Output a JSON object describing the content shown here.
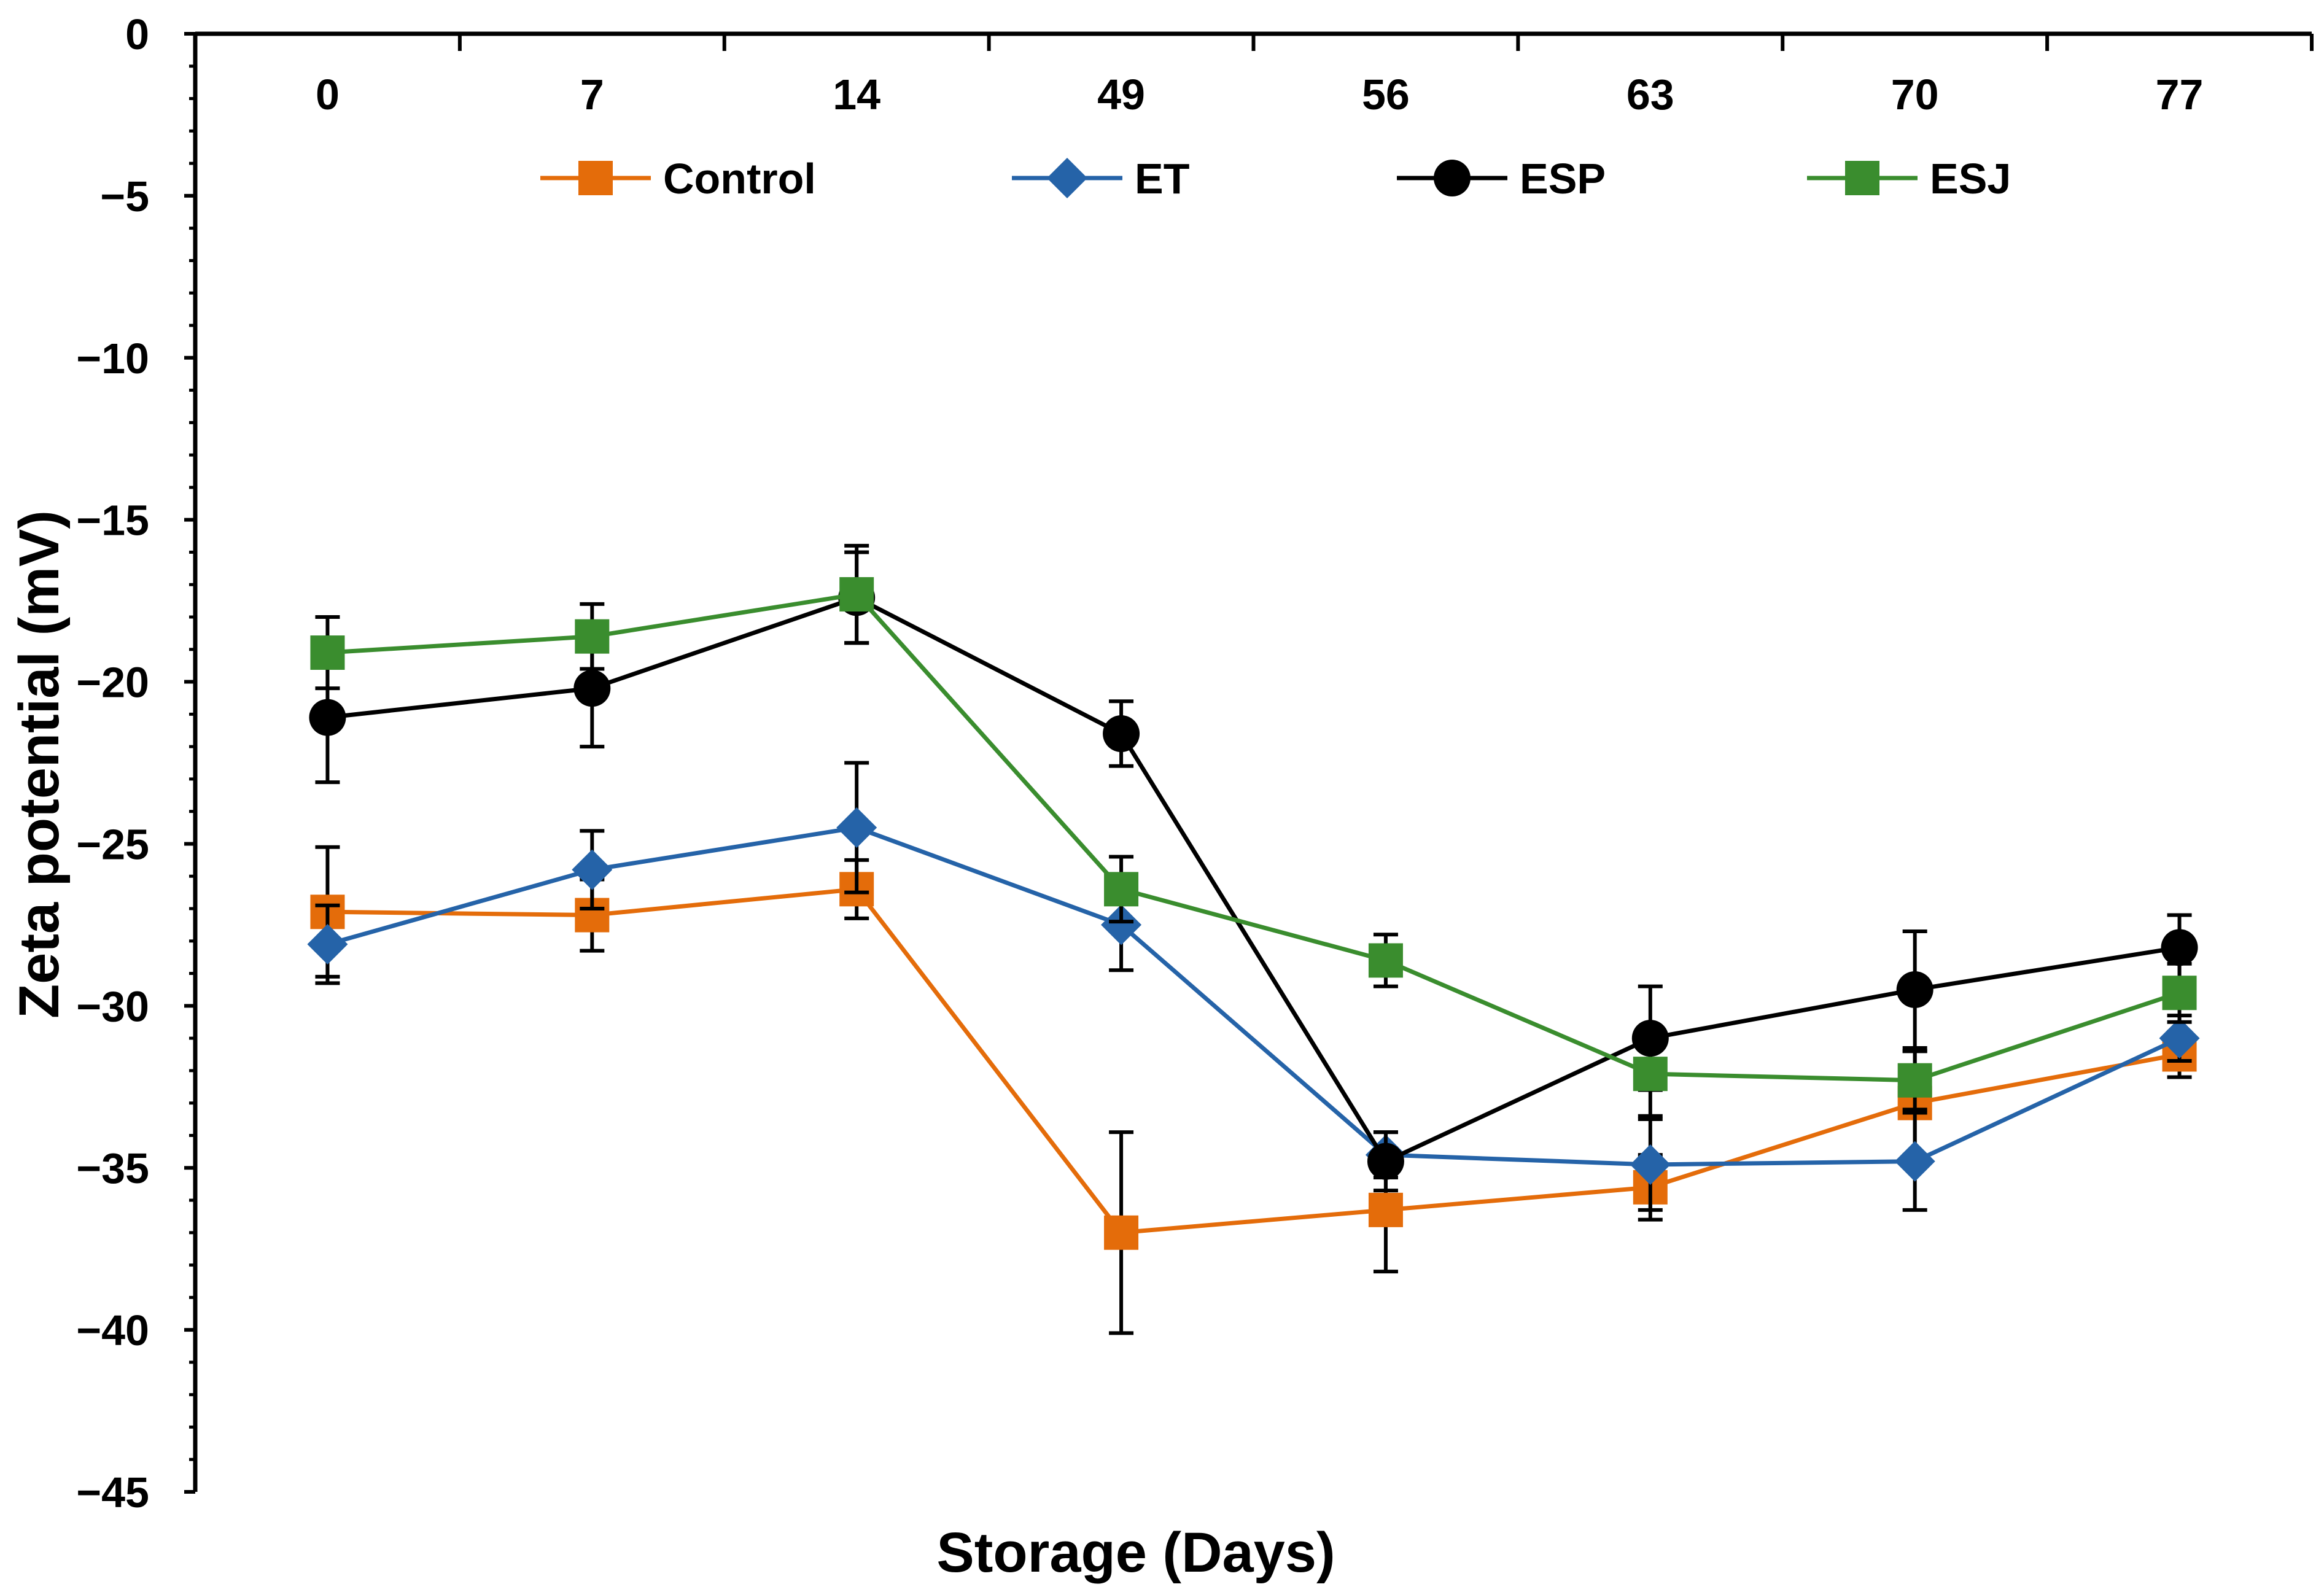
{
  "chart_data": {
    "type": "line",
    "title": "",
    "xlabel": "Storage (Days)",
    "ylabel": "Zeta potential (mV)",
    "categories": [
      "0",
      "7",
      "14",
      "49",
      "56",
      "63",
      "70",
      "77"
    ],
    "ylim": [
      -45,
      0
    ],
    "yticks": [
      0,
      -5,
      -10,
      -15,
      -20,
      -25,
      -30,
      -35,
      -40,
      -45
    ],
    "ytick_labels": [
      "0",
      "−5",
      "−10",
      "−15",
      "−20",
      "−25",
      "−30",
      "−35",
      "−40",
      "−45"
    ],
    "x_axis_position": "top",
    "grid": false,
    "legend_position": "top",
    "series": [
      {
        "name": "Control",
        "color": "#E46C0A",
        "marker": "square",
        "values": [
          -27.1,
          -27.2,
          -26.4,
          -37.0,
          -36.3,
          -35.6,
          -33.0,
          -31.5
        ],
        "errors": [
          2.0,
          1.1,
          0.9,
          3.1,
          1.9,
          1.0,
          1.6,
          0.7
        ]
      },
      {
        "name": "ET",
        "color": "#2563A8",
        "marker": "diamond",
        "values": [
          -28.1,
          -25.8,
          -24.5,
          -27.5,
          -34.6,
          -34.9,
          -34.8,
          -31.0
        ],
        "errors": [
          1.2,
          1.2,
          2.0,
          1.4,
          0.7,
          1.4,
          1.5,
          0.7
        ]
      },
      {
        "name": "ESP",
        "color": "#000000",
        "marker": "circle",
        "values": [
          -21.1,
          -20.2,
          -17.4,
          -21.6,
          -34.8,
          -31.0,
          -29.5,
          -28.2
        ],
        "errors": [
          2.0,
          1.8,
          1.4,
          1.0,
          0.9,
          1.6,
          1.8,
          1.0
        ]
      },
      {
        "name": "ESJ",
        "color": "#3A8D2E",
        "marker": "square",
        "values": [
          -19.1,
          -18.6,
          -17.3,
          -26.4,
          -28.6,
          -32.1,
          -32.3,
          -29.6
        ],
        "errors": [
          1.1,
          1.0,
          1.5,
          1.0,
          0.8,
          1.3,
          0.9,
          0.9
        ]
      }
    ]
  }
}
